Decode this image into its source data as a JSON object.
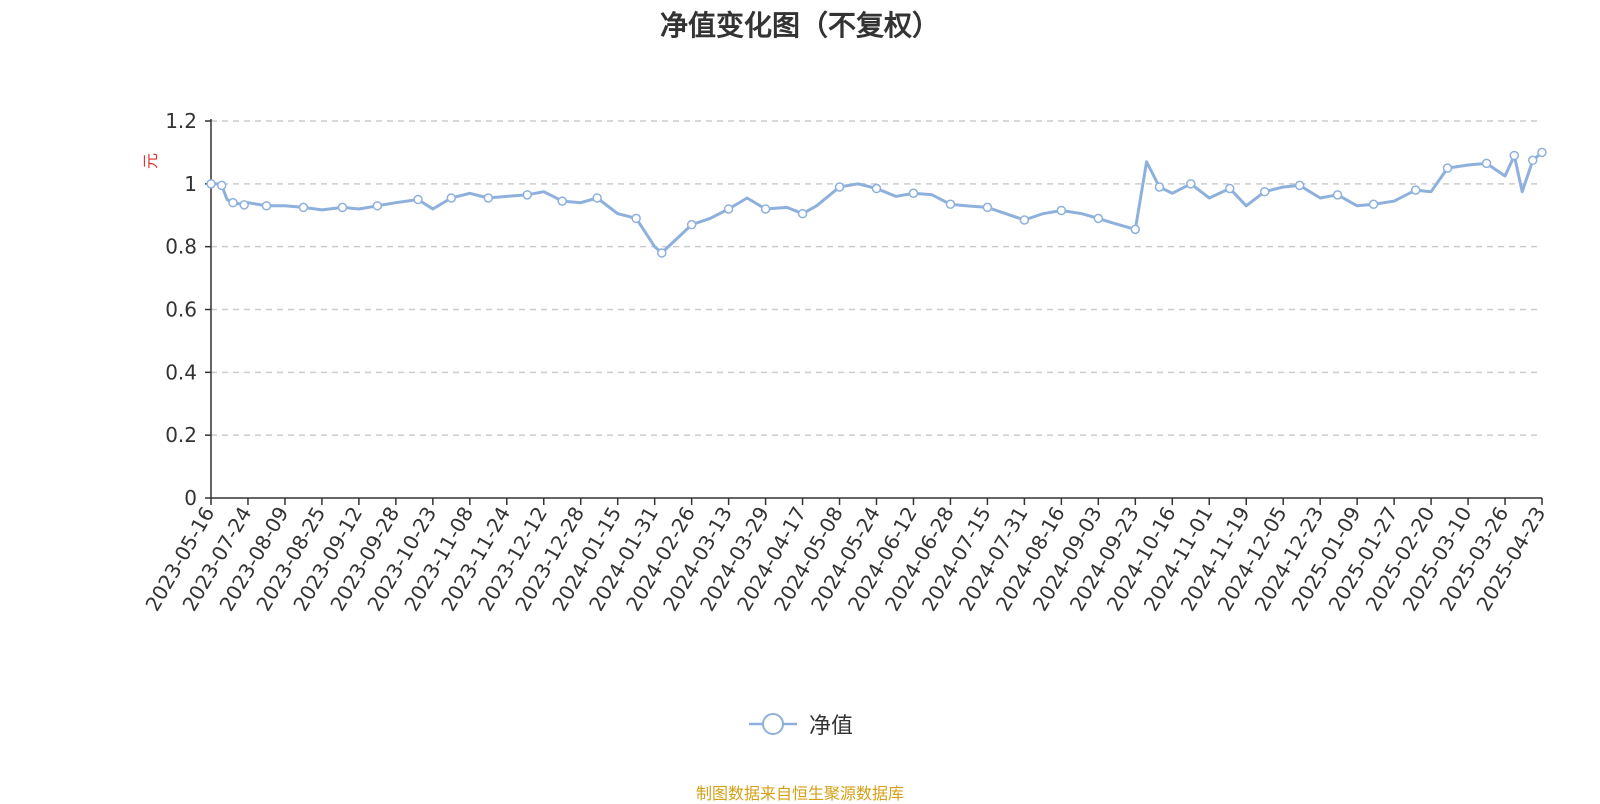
{
  "chart_data": {
    "type": "line",
    "title": "净值变化图（不复权）",
    "ylabel": "元",
    "ylim": [
      0,
      1.2
    ],
    "y_ticks": [
      "0",
      "0.2",
      "0.4",
      "0.6",
      "0.8",
      "1",
      "1.2"
    ],
    "grid": true,
    "legend_position": "bottom-center",
    "x_tick_labels": [
      "2023-05-16",
      "2023-07-24",
      "2023-08-09",
      "2023-08-25",
      "2023-09-12",
      "2023-09-28",
      "2023-10-23",
      "2023-11-08",
      "2023-11-24",
      "2023-12-12",
      "2023-12-28",
      "2024-01-15",
      "2024-01-31",
      "2024-02-26",
      "2024-03-13",
      "2024-03-29",
      "2024-04-17",
      "2024-05-08",
      "2024-05-24",
      "2024-06-12",
      "2024-06-28",
      "2024-07-15",
      "2024-07-31",
      "2024-08-16",
      "2024-09-03",
      "2024-09-23",
      "2024-10-16",
      "2024-11-01",
      "2024-11-19",
      "2024-12-05",
      "2024-12-23",
      "2025-01-09",
      "2025-01-27",
      "2025-02-20",
      "2025-03-10",
      "2025-03-26",
      "2025-04-23"
    ],
    "series": [
      {
        "name": "净值",
        "color": "#8eb0dc",
        "x": [
          "2023-05-16",
          "2023-05-26",
          "2023-06-05",
          "2023-06-15",
          "2023-06-26",
          "2023-07-06",
          "2023-07-17",
          "2023-07-24",
          "2023-08-01",
          "2023-08-09",
          "2023-08-17",
          "2023-08-25",
          "2023-09-04",
          "2023-09-12",
          "2023-09-20",
          "2023-09-28",
          "2023-10-13",
          "2023-10-23",
          "2023-10-31",
          "2023-11-08",
          "2023-11-16",
          "2023-11-24",
          "2023-12-04",
          "2023-12-12",
          "2023-12-20",
          "2023-12-28",
          "2024-01-05",
          "2024-01-15",
          "2024-01-23",
          "2024-01-31",
          "2024-02-05",
          "2024-02-19",
          "2024-02-26",
          "2024-03-05",
          "2024-03-13",
          "2024-03-21",
          "2024-03-29",
          "2024-04-09",
          "2024-04-17",
          "2024-04-25",
          "2024-05-08",
          "2024-05-16",
          "2024-05-24",
          "2024-06-03",
          "2024-06-12",
          "2024-06-20",
          "2024-06-28",
          "2024-07-05",
          "2024-07-15",
          "2024-07-23",
          "2024-07-31",
          "2024-08-08",
          "2024-08-16",
          "2024-08-26",
          "2024-09-03",
          "2024-09-11",
          "2024-09-23",
          "2024-09-30",
          "2024-10-08",
          "2024-10-16",
          "2024-10-24",
          "2024-11-01",
          "2024-11-11",
          "2024-11-19",
          "2024-11-27",
          "2024-12-05",
          "2024-12-13",
          "2024-12-23",
          "2024-12-31",
          "2025-01-09",
          "2025-01-17",
          "2025-01-27",
          "2025-02-10",
          "2025-02-20",
          "2025-02-28",
          "2025-03-10",
          "2025-03-18",
          "2025-03-26",
          "2025-04-02",
          "2025-04-08",
          "2025-04-16",
          "2025-04-23"
        ],
        "values": [
          1.0,
          1.0,
          0.995,
          0.95,
          0.94,
          0.937,
          0.933,
          0.94,
          0.93,
          0.93,
          0.925,
          0.917,
          0.925,
          0.92,
          0.93,
          0.94,
          0.95,
          0.92,
          0.955,
          0.97,
          0.955,
          0.96,
          0.965,
          0.975,
          0.945,
          0.94,
          0.955,
          0.905,
          0.89,
          0.8,
          0.78,
          0.84,
          0.87,
          0.89,
          0.92,
          0.955,
          0.92,
          0.925,
          0.905,
          0.93,
          0.99,
          1.0,
          0.985,
          0.96,
          0.97,
          0.965,
          0.935,
          0.93,
          0.925,
          0.905,
          0.885,
          0.905,
          0.915,
          0.905,
          0.89,
          0.875,
          0.855,
          1.07,
          0.99,
          0.97,
          1.0,
          0.955,
          0.985,
          0.93,
          0.975,
          0.99,
          0.995,
          0.955,
          0.965,
          0.93,
          0.935,
          0.945,
          0.98,
          0.975,
          1.05,
          1.06,
          1.065,
          1.025,
          1.09,
          0.975,
          1.075,
          1.1
        ]
      }
    ]
  },
  "legend": {
    "label": "净值"
  },
  "source": {
    "text": "制图数据来自恒生聚源数据库",
    "color": "#d4a017"
  },
  "colors": {
    "line": "#8eb0dc",
    "axis": "#333333",
    "grid": "#cccccc",
    "ylabel": "#e03030"
  }
}
